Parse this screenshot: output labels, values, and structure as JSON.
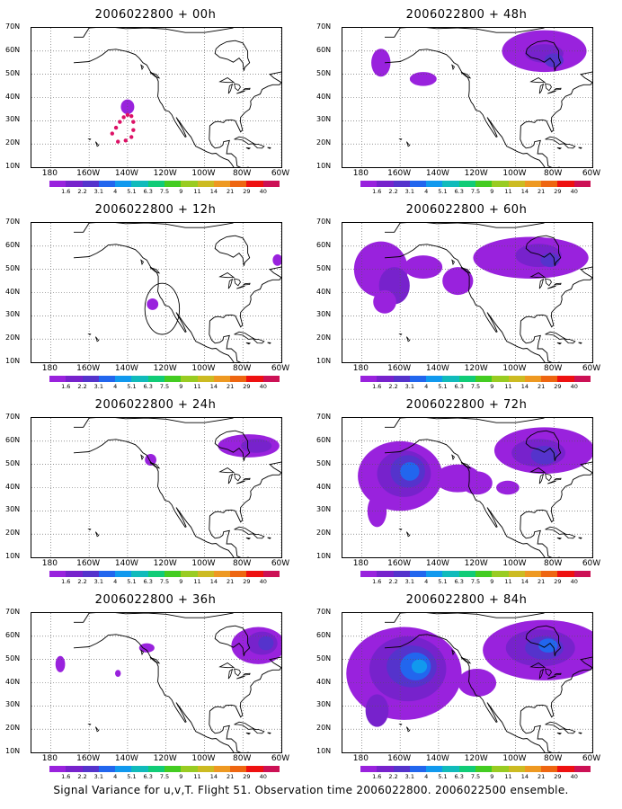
{
  "colorbar": {
    "colors": [
      "#9922dd",
      "#7722cc",
      "#5533cc",
      "#2266ee",
      "#1199ee",
      "#11bbbb",
      "#11cc77",
      "#44cc22",
      "#99cc22",
      "#ccbb22",
      "#ee9922",
      "#ee6611",
      "#ee1111",
      "#cc1155"
    ],
    "labels": [
      "1.6",
      "2.2",
      "3.1",
      "4",
      "5.1",
      "6.3",
      "7.5",
      "9",
      "11",
      "14",
      "21",
      "29",
      "40"
    ]
  },
  "axes": {
    "lat_labels": [
      "70N",
      "60N",
      "50N",
      "40N",
      "30N",
      "20N",
      "10N"
    ],
    "lon_labels": [
      "180",
      "160W",
      "140W",
      "120W",
      "100W",
      "80W",
      "60W"
    ]
  },
  "panels": [
    {
      "title": "2006022800 + 00h"
    },
    {
      "title": "2006022800 + 48h"
    },
    {
      "title": "2006022800 + 12h"
    },
    {
      "title": "2006022800 + 60h"
    },
    {
      "title": "2006022800 + 24h"
    },
    {
      "title": "2006022800 + 72h"
    },
    {
      "title": "2006022800 + 36h"
    },
    {
      "title": "2006022800 + 84h"
    }
  ],
  "caption": "Signal Variance for u,v,T. Flight 51. Observation time 2006022800. 2006022500 ensemble."
}
